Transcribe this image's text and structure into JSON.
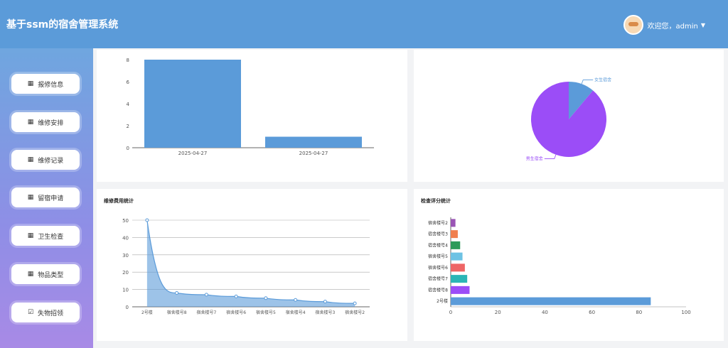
{
  "app": {
    "title": "基于ssm的宿舍管理系统"
  },
  "header": {
    "welcome": "欢迎您，admin",
    "caret": "▼",
    "avatar_icon": "avatar-icon"
  },
  "sidebar": {
    "items": [
      {
        "label": "报修信息",
        "icon": "grid-icon"
      },
      {
        "label": "维修安排",
        "icon": "grid-icon"
      },
      {
        "label": "维修记录",
        "icon": "grid-icon"
      },
      {
        "label": "留宿申请",
        "icon": "grid-icon"
      },
      {
        "label": "卫生检查",
        "icon": "grid-icon"
      },
      {
        "label": "物品类型",
        "icon": "grid-icon"
      },
      {
        "label": "失物招领",
        "icon": "check-square-icon"
      }
    ]
  },
  "charts": {
    "panel3_title": "维修费用统计",
    "panel4_title": "检查评分统计"
  },
  "chart_data": [
    {
      "type": "bar",
      "categories": [
        "2025-04-27",
        "2025-04-27"
      ],
      "values": [
        8,
        1
      ],
      "ylim": [
        0,
        8
      ],
      "yticks": [
        0,
        2,
        4,
        6,
        8
      ],
      "color": "#5b9bd9"
    },
    {
      "type": "pie",
      "labels": [
        "女生宿舍",
        "男生宿舍"
      ],
      "values": [
        1,
        8
      ],
      "colors": [
        "#5b9bd9",
        "#9b4df7"
      ]
    },
    {
      "type": "area",
      "title": "维修费用统计",
      "categories": [
        "2号楼",
        "宿舍楼号8",
        "宿舍楼号7",
        "宿舍楼号6",
        "宿舍楼号5",
        "宿舍楼号4",
        "宿舍楼号3",
        "宿舍楼号2"
      ],
      "values": [
        50,
        8,
        7,
        6,
        5,
        4,
        3,
        2
      ],
      "ylim": [
        0,
        50
      ],
      "yticks": [
        0,
        10,
        20,
        30,
        40,
        50
      ],
      "color": "#5b9bd9"
    },
    {
      "type": "bar",
      "orientation": "horizontal",
      "title": "检查评分统计",
      "categories": [
        "宿舍楼号2",
        "宿舍楼号3",
        "宿舍楼号4",
        "宿舍楼号5",
        "宿舍楼号6",
        "宿舍楼号7",
        "宿舍楼号8",
        "2号楼"
      ],
      "values": [
        2,
        3,
        4,
        5,
        6,
        7,
        8,
        85
      ],
      "colors": [
        "#9a55b5",
        "#f07f4f",
        "#2e9a5a",
        "#6ec2e4",
        "#ee6666",
        "#2bb5b6",
        "#9b4df7",
        "#5b9bd9"
      ],
      "xlim": [
        0,
        100
      ],
      "xticks": [
        0,
        20,
        40,
        60,
        80,
        100
      ]
    }
  ]
}
